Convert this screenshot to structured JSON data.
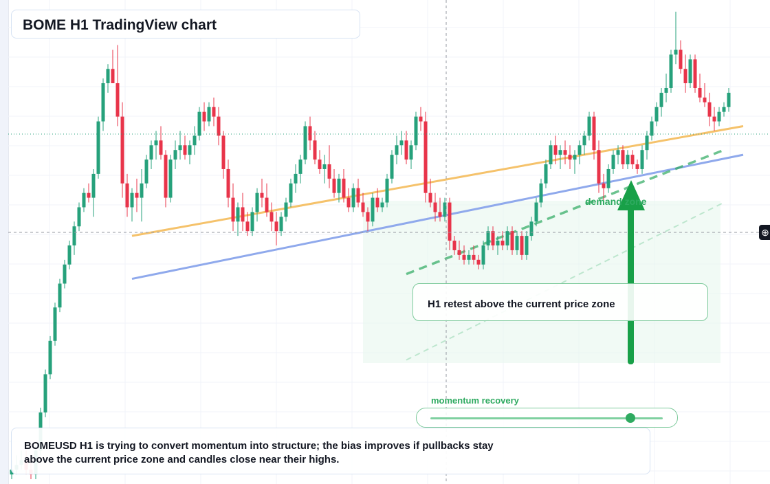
{
  "header": {
    "title": "BOME H1 TradingView chart"
  },
  "annotations": {
    "retest_note": "H1 retest above the current price zone",
    "demand_label": "demand zone",
    "momentum_label": "momentum recovery",
    "momentum_level": 0.86
  },
  "summary": {
    "line1": "BOMEUSD H1 is trying to convert momentum into structure; the bias improves if pullbacks stay",
    "line2": "above the current price zone and candles close near their highs."
  },
  "toolbar": {
    "crosshair_icon": "crosshair-plus-icon"
  },
  "colors": {
    "up": "#26a17b",
    "down": "#e8344a",
    "trend_orange": "#f5c26b",
    "trend_blue": "#8fa9ec",
    "zone_green": "#2eaa60"
  },
  "chart_data": {
    "type": "candlestick",
    "symbol": "BOMEUSD",
    "timeframe": "H1",
    "note": "price axis labels not visible; values are relative price units",
    "ylim": [
      0,
      100
    ],
    "candles": [
      {
        "o": 2,
        "h": 5,
        "l": 1,
        "c": 3
      },
      {
        "o": 3,
        "h": 6,
        "l": 2,
        "c": 4
      },
      {
        "o": 4,
        "h": 7,
        "l": 3,
        "c": 5
      },
      {
        "o": 5,
        "h": 7,
        "l": 2,
        "c": 3
      },
      {
        "o": 3,
        "h": 6,
        "l": 1,
        "c": 2
      },
      {
        "o": 2,
        "h": 8,
        "l": 1,
        "c": 7
      },
      {
        "o": 7,
        "h": 16,
        "l": 6,
        "c": 15
      },
      {
        "o": 15,
        "h": 24,
        "l": 14,
        "c": 23
      },
      {
        "o": 23,
        "h": 31,
        "l": 22,
        "c": 30
      },
      {
        "o": 30,
        "h": 38,
        "l": 29,
        "c": 37
      },
      {
        "o": 37,
        "h": 43,
        "l": 36,
        "c": 42
      },
      {
        "o": 42,
        "h": 47,
        "l": 41,
        "c": 46
      },
      {
        "o": 46,
        "h": 51,
        "l": 45,
        "c": 50
      },
      {
        "o": 50,
        "h": 55,
        "l": 48,
        "c": 54
      },
      {
        "o": 54,
        "h": 59,
        "l": 53,
        "c": 58
      },
      {
        "o": 58,
        "h": 62,
        "l": 57,
        "c": 61
      },
      {
        "o": 61,
        "h": 63,
        "l": 59,
        "c": 60
      },
      {
        "o": 60,
        "h": 66,
        "l": 56,
        "c": 65
      },
      {
        "o": 65,
        "h": 77,
        "l": 64,
        "c": 76
      },
      {
        "o": 76,
        "h": 85,
        "l": 74,
        "c": 84
      },
      {
        "o": 84,
        "h": 88,
        "l": 82,
        "c": 87
      },
      {
        "o": 87,
        "h": 91,
        "l": 85,
        "c": 84
      },
      {
        "o": 84,
        "h": 92,
        "l": 75,
        "c": 77
      },
      {
        "o": 77,
        "h": 80,
        "l": 60,
        "c": 63
      },
      {
        "o": 63,
        "h": 65,
        "l": 56,
        "c": 58
      },
      {
        "o": 58,
        "h": 62,
        "l": 55,
        "c": 61
      },
      {
        "o": 61,
        "h": 64,
        "l": 57,
        "c": 60
      },
      {
        "o": 60,
        "h": 66,
        "l": 55,
        "c": 63
      },
      {
        "o": 63,
        "h": 69,
        "l": 62,
        "c": 68
      },
      {
        "o": 68,
        "h": 72,
        "l": 66,
        "c": 71
      },
      {
        "o": 71,
        "h": 74,
        "l": 68,
        "c": 72
      },
      {
        "o": 72,
        "h": 75,
        "l": 68,
        "c": 69
      },
      {
        "o": 69,
        "h": 70,
        "l": 58,
        "c": 60
      },
      {
        "o": 60,
        "h": 69,
        "l": 59,
        "c": 68
      },
      {
        "o": 68,
        "h": 72,
        "l": 66,
        "c": 70
      },
      {
        "o": 70,
        "h": 74,
        "l": 68,
        "c": 71
      },
      {
        "o": 71,
        "h": 73,
        "l": 68,
        "c": 69
      },
      {
        "o": 69,
        "h": 72,
        "l": 67,
        "c": 71
      },
      {
        "o": 71,
        "h": 75,
        "l": 69,
        "c": 73
      },
      {
        "o": 73,
        "h": 79,
        "l": 72,
        "c": 78
      },
      {
        "o": 78,
        "h": 80,
        "l": 74,
        "c": 76
      },
      {
        "o": 76,
        "h": 80,
        "l": 75,
        "c": 79
      },
      {
        "o": 79,
        "h": 81,
        "l": 75,
        "c": 77
      },
      {
        "o": 77,
        "h": 79,
        "l": 71,
        "c": 73
      },
      {
        "o": 73,
        "h": 74,
        "l": 64,
        "c": 66
      },
      {
        "o": 66,
        "h": 68,
        "l": 58,
        "c": 60
      },
      {
        "o": 60,
        "h": 63,
        "l": 53,
        "c": 55
      },
      {
        "o": 55,
        "h": 59,
        "l": 52,
        "c": 58
      },
      {
        "o": 58,
        "h": 61,
        "l": 53,
        "c": 55
      },
      {
        "o": 55,
        "h": 57,
        "l": 52,
        "c": 53
      },
      {
        "o": 53,
        "h": 58,
        "l": 52,
        "c": 57
      },
      {
        "o": 57,
        "h": 62,
        "l": 55,
        "c": 61
      },
      {
        "o": 61,
        "h": 64,
        "l": 58,
        "c": 60
      },
      {
        "o": 60,
        "h": 63,
        "l": 56,
        "c": 57
      },
      {
        "o": 57,
        "h": 59,
        "l": 53,
        "c": 55
      },
      {
        "o": 55,
        "h": 57,
        "l": 50,
        "c": 53
      },
      {
        "o": 53,
        "h": 57,
        "l": 52,
        "c": 56
      },
      {
        "o": 56,
        "h": 60,
        "l": 55,
        "c": 59
      },
      {
        "o": 59,
        "h": 64,
        "l": 58,
        "c": 63
      },
      {
        "o": 63,
        "h": 67,
        "l": 61,
        "c": 65
      },
      {
        "o": 65,
        "h": 69,
        "l": 63,
        "c": 68
      },
      {
        "o": 68,
        "h": 76,
        "l": 67,
        "c": 75
      },
      {
        "o": 75,
        "h": 77,
        "l": 70,
        "c": 72
      },
      {
        "o": 72,
        "h": 74,
        "l": 67,
        "c": 68
      },
      {
        "o": 68,
        "h": 70,
        "l": 65,
        "c": 66
      },
      {
        "o": 66,
        "h": 69,
        "l": 63,
        "c": 67
      },
      {
        "o": 67,
        "h": 71,
        "l": 62,
        "c": 64
      },
      {
        "o": 64,
        "h": 66,
        "l": 60,
        "c": 61
      },
      {
        "o": 61,
        "h": 65,
        "l": 59,
        "c": 64
      },
      {
        "o": 64,
        "h": 66,
        "l": 59,
        "c": 60
      },
      {
        "o": 60,
        "h": 62,
        "l": 57,
        "c": 58
      },
      {
        "o": 58,
        "h": 63,
        "l": 57,
        "c": 62
      },
      {
        "o": 62,
        "h": 64,
        "l": 58,
        "c": 59
      },
      {
        "o": 59,
        "h": 61,
        "l": 56,
        "c": 57
      },
      {
        "o": 57,
        "h": 58,
        "l": 53,
        "c": 55
      },
      {
        "o": 55,
        "h": 61,
        "l": 54,
        "c": 60
      },
      {
        "o": 60,
        "h": 62,
        "l": 57,
        "c": 58
      },
      {
        "o": 58,
        "h": 60,
        "l": 57,
        "c": 59
      },
      {
        "o": 59,
        "h": 65,
        "l": 58,
        "c": 64
      },
      {
        "o": 64,
        "h": 70,
        "l": 63,
        "c": 69
      },
      {
        "o": 69,
        "h": 73,
        "l": 67,
        "c": 71
      },
      {
        "o": 71,
        "h": 74,
        "l": 69,
        "c": 72
      },
      {
        "o": 72,
        "h": 74,
        "l": 67,
        "c": 68
      },
      {
        "o": 68,
        "h": 72,
        "l": 66,
        "c": 71
      },
      {
        "o": 71,
        "h": 78,
        "l": 70,
        "c": 77
      },
      {
        "o": 77,
        "h": 79,
        "l": 74,
        "c": 76
      },
      {
        "o": 76,
        "h": 78,
        "l": 59,
        "c": 61
      },
      {
        "o": 61,
        "h": 64,
        "l": 58,
        "c": 59
      },
      {
        "o": 59,
        "h": 61,
        "l": 55,
        "c": 57
      },
      {
        "o": 57,
        "h": 60,
        "l": 55,
        "c": 56
      },
      {
        "o": 56,
        "h": 60,
        "l": 55,
        "c": 59
      },
      {
        "o": 59,
        "h": 60,
        "l": 49,
        "c": 51
      },
      {
        "o": 51,
        "h": 52,
        "l": 48,
        "c": 49
      },
      {
        "o": 49,
        "h": 51,
        "l": 47,
        "c": 48
      },
      {
        "o": 48,
        "h": 50,
        "l": 46,
        "c": 47
      },
      {
        "o": 47,
        "h": 49,
        "l": 46,
        "c": 48
      },
      {
        "o": 48,
        "h": 50,
        "l": 46,
        "c": 47
      },
      {
        "o": 47,
        "h": 48,
        "l": 45,
        "c": 46
      },
      {
        "o": 46,
        "h": 51,
        "l": 45,
        "c": 50
      },
      {
        "o": 50,
        "h": 54,
        "l": 49,
        "c": 53
      },
      {
        "o": 53,
        "h": 54,
        "l": 49,
        "c": 50
      },
      {
        "o": 50,
        "h": 52,
        "l": 48,
        "c": 51
      },
      {
        "o": 51,
        "h": 53,
        "l": 49,
        "c": 50
      },
      {
        "o": 50,
        "h": 54,
        "l": 49,
        "c": 53
      },
      {
        "o": 53,
        "h": 54,
        "l": 48,
        "c": 49
      },
      {
        "o": 49,
        "h": 53,
        "l": 48,
        "c": 52
      },
      {
        "o": 52,
        "h": 53,
        "l": 47,
        "c": 48
      },
      {
        "o": 48,
        "h": 53,
        "l": 47,
        "c": 52
      },
      {
        "o": 52,
        "h": 56,
        "l": 51,
        "c": 55
      },
      {
        "o": 55,
        "h": 60,
        "l": 54,
        "c": 59
      },
      {
        "o": 59,
        "h": 64,
        "l": 58,
        "c": 63
      },
      {
        "o": 63,
        "h": 68,
        "l": 62,
        "c": 67
      },
      {
        "o": 67,
        "h": 72,
        "l": 66,
        "c": 71
      },
      {
        "o": 71,
        "h": 73,
        "l": 67,
        "c": 69
      },
      {
        "o": 69,
        "h": 71,
        "l": 66,
        "c": 70
      },
      {
        "o": 70,
        "h": 72,
        "l": 67,
        "c": 69
      },
      {
        "o": 69,
        "h": 71,
        "l": 66,
        "c": 68
      },
      {
        "o": 68,
        "h": 70,
        "l": 65,
        "c": 69
      },
      {
        "o": 69,
        "h": 72,
        "l": 67,
        "c": 71
      },
      {
        "o": 71,
        "h": 74,
        "l": 69,
        "c": 73
      },
      {
        "o": 73,
        "h": 78,
        "l": 72,
        "c": 77
      },
      {
        "o": 77,
        "h": 78,
        "l": 68,
        "c": 70
      },
      {
        "o": 70,
        "h": 72,
        "l": 61,
        "c": 63
      },
      {
        "o": 63,
        "h": 65,
        "l": 59,
        "c": 62
      },
      {
        "o": 62,
        "h": 67,
        "l": 61,
        "c": 66
      },
      {
        "o": 66,
        "h": 70,
        "l": 65,
        "c": 69
      },
      {
        "o": 69,
        "h": 71,
        "l": 67,
        "c": 70
      },
      {
        "o": 70,
        "h": 71,
        "l": 66,
        "c": 67
      },
      {
        "o": 67,
        "h": 70,
        "l": 66,
        "c": 69
      },
      {
        "o": 69,
        "h": 70,
        "l": 66,
        "c": 67
      },
      {
        "o": 67,
        "h": 68,
        "l": 65,
        "c": 66
      },
      {
        "o": 66,
        "h": 71,
        "l": 65,
        "c": 70
      },
      {
        "o": 70,
        "h": 74,
        "l": 68,
        "c": 73
      },
      {
        "o": 73,
        "h": 77,
        "l": 72,
        "c": 76
      },
      {
        "o": 76,
        "h": 80,
        "l": 75,
        "c": 79
      },
      {
        "o": 79,
        "h": 83,
        "l": 77,
        "c": 82
      },
      {
        "o": 82,
        "h": 86,
        "l": 80,
        "c": 83
      },
      {
        "o": 83,
        "h": 91,
        "l": 82,
        "c": 90
      },
      {
        "o": 90,
        "h": 99,
        "l": 88,
        "c": 91
      },
      {
        "o": 91,
        "h": 93,
        "l": 86,
        "c": 87
      },
      {
        "o": 87,
        "h": 90,
        "l": 82,
        "c": 84
      },
      {
        "o": 84,
        "h": 90,
        "l": 83,
        "c": 89
      },
      {
        "o": 89,
        "h": 90,
        "l": 82,
        "c": 83
      },
      {
        "o": 83,
        "h": 86,
        "l": 80,
        "c": 81
      },
      {
        "o": 81,
        "h": 84,
        "l": 79,
        "c": 80
      },
      {
        "o": 80,
        "h": 82,
        "l": 75,
        "c": 77
      },
      {
        "o": 77,
        "h": 79,
        "l": 74,
        "c": 76
      },
      {
        "o": 76,
        "h": 79,
        "l": 75,
        "c": 78
      },
      {
        "o": 78,
        "h": 80,
        "l": 77,
        "c": 79
      },
      {
        "o": 79,
        "h": 83,
        "l": 78,
        "c": 82
      }
    ],
    "overlays": [
      {
        "name": "",
        "kind": "trendline",
        "color": "#f5c26b",
        "points": [
          [
            25,
            52
          ],
          [
            152,
            75
          ]
        ]
      },
      {
        "name": "",
        "kind": "trendline",
        "color": "#8fa9ec",
        "points": [
          [
            25,
            43
          ],
          [
            152,
            69
          ]
        ]
      },
      {
        "name": "",
        "kind": "trendline-dashed",
        "color": "#2eaa60",
        "points": [
          [
            82,
            44
          ],
          [
            148,
            70
          ]
        ]
      },
      {
        "name": "",
        "kind": "trendline-dashed-light",
        "color": "#7fd0a0",
        "points": [
          [
            82,
            26
          ],
          [
            148,
            59
          ]
        ]
      }
    ]
  }
}
